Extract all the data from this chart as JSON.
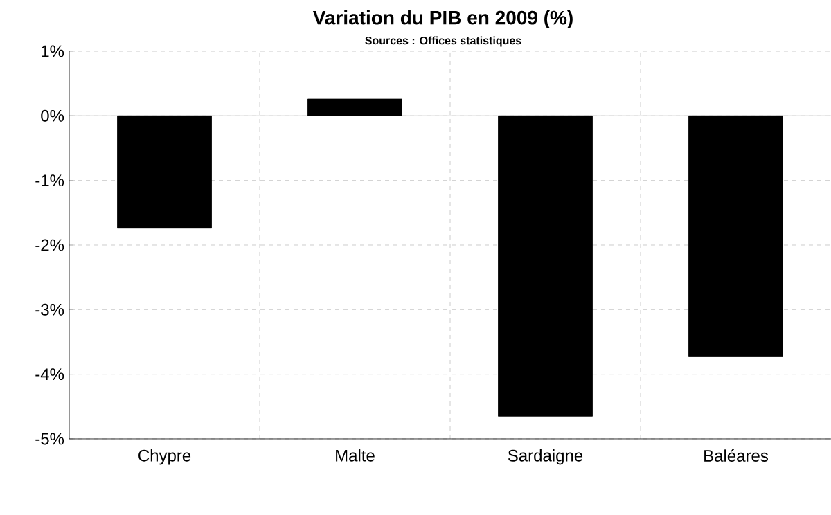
{
  "chart_data": {
    "type": "bar",
    "title": "Variation du PIB en 2009 (%)",
    "subtitle": "Sources : Offices statistiques",
    "categories": [
      "Chypre",
      "Malte",
      "Sardaigne",
      "Baléares"
    ],
    "values": [
      -1.74,
      0.26,
      -4.65,
      -3.73
    ],
    "color": "#000000",
    "ylim": [
      -5,
      1
    ],
    "yticks": [
      {
        "value": -5,
        "label": "-5%"
      },
      {
        "value": -4,
        "label": "-4%"
      },
      {
        "value": -3,
        "label": "-3%"
      },
      {
        "value": -2,
        "label": "-2%"
      },
      {
        "value": -1,
        "label": "-1%"
      },
      {
        "value": 0,
        "label": "0%"
      },
      {
        "value": 1,
        "label": "1%"
      }
    ],
    "grid": true
  }
}
